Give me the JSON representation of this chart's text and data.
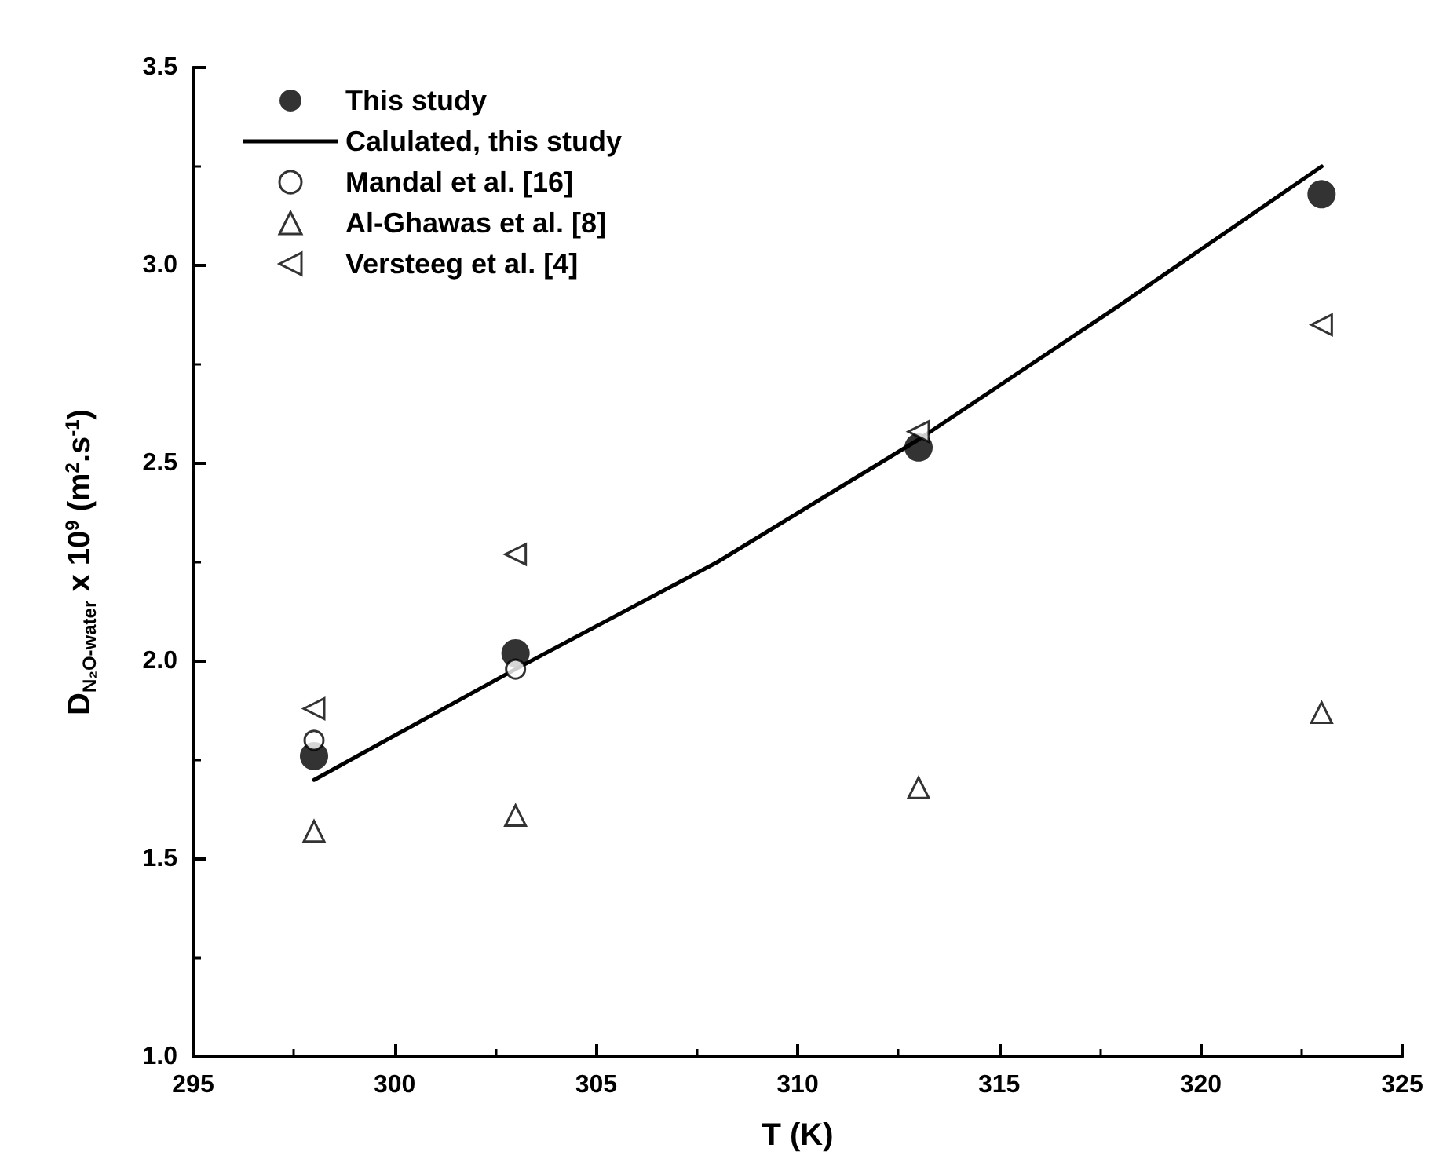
{
  "chart_data": {
    "type": "scatter",
    "xlabel": "T (K)",
    "ylabel": "D$_{N₂O-water}$ x 10$^{9}$ (m$^{2}$.s$^{-1}$)",
    "xlim": [
      295,
      325
    ],
    "xticks": [
      295,
      300,
      305,
      310,
      315,
      320,
      325
    ],
    "ylim": [
      1.0,
      3.5
    ],
    "yticks": [
      {
        "value": 1.0,
        "label": "1.0"
      },
      1.5,
      {
        "value": 2.0,
        "label": "2.0"
      },
      2.5,
      {
        "value": 3.0,
        "label": "3.0"
      },
      3.5
    ],
    "grid": false,
    "legend": "top left",
    "series": [
      {
        "name": "This study",
        "type": "scatter",
        "marker": "circle",
        "color": "#000000",
        "x": [
          298,
          303,
          313,
          323
        ],
        "values": [
          1.76,
          2.02,
          2.54,
          3.18
        ]
      },
      {
        "name": "Calulated, this study",
        "type": "line",
        "marker": "none",
        "line_style": "solid",
        "color": "#000000",
        "x": [
          298,
          303,
          308,
          313,
          318,
          323
        ],
        "values": [
          1.7,
          1.98,
          2.25,
          2.56,
          2.9,
          3.25
        ]
      },
      {
        "name": "Mandal et al. [16]",
        "type": "scatter",
        "marker": "circle-open",
        "color": "#000000",
        "x": [
          298,
          303
        ],
        "values": [
          1.8,
          1.98
        ]
      },
      {
        "name": "Al-Ghawas et al. [8]",
        "type": "scatter",
        "marker": "triangle-open",
        "color": "#000000",
        "x": [
          298,
          303,
          313,
          323
        ],
        "values": [
          1.57,
          1.61,
          1.68,
          1.87
        ]
      },
      {
        "name": "Versteeg et al. [4]",
        "type": "scatter",
        "marker": "triangle-left-open",
        "color": "#000000",
        "x": [
          298,
          303,
          313,
          323
        ],
        "values": [
          1.88,
          2.27,
          2.58,
          2.85
        ]
      }
    ]
  }
}
